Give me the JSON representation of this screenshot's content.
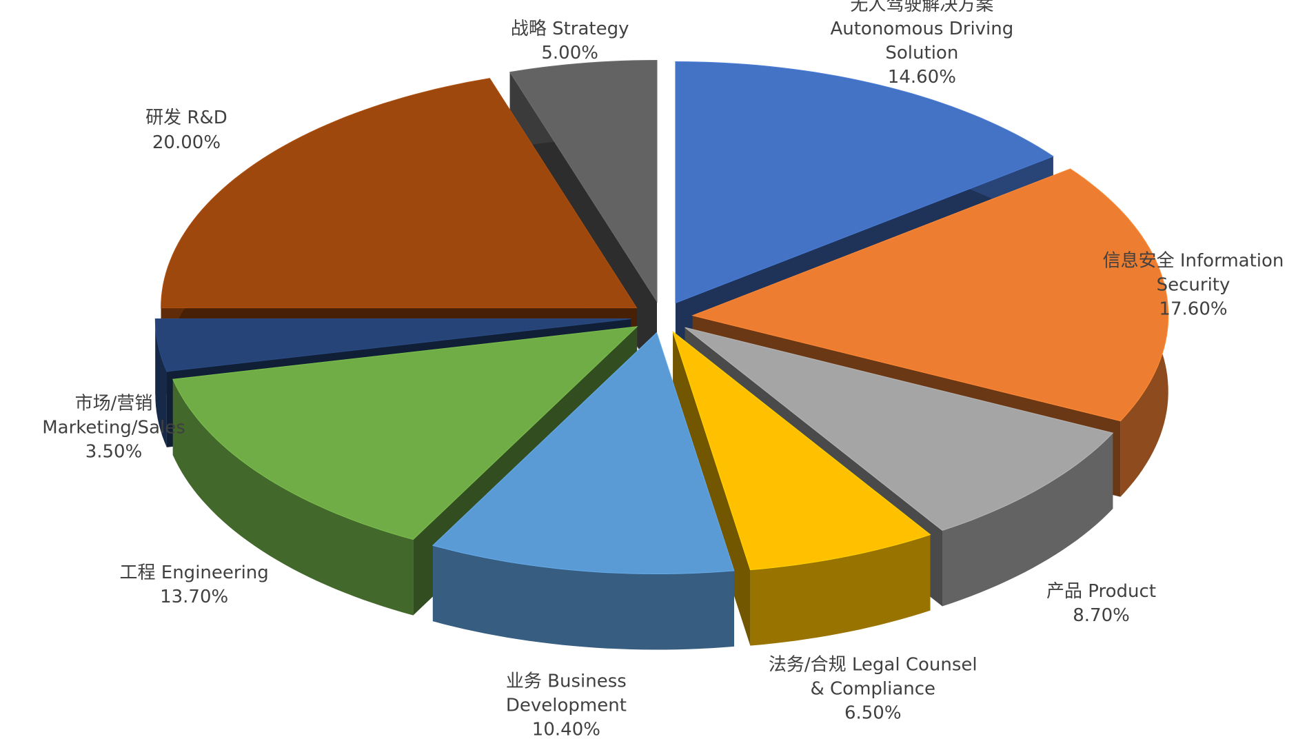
{
  "chart_data": {
    "type": "pie",
    "style": "exploded-3d",
    "categories": [
      "无人驾驶解决方案 Autonomous Driving Solution",
      "信息安全 Information Security",
      "产品 Product",
      "法务/合规 Legal Counsel & Compliance",
      "业务 Business Development",
      "工程 Engineering",
      "市场/营销 Marketing/Sales",
      "研发 R&D",
      "战略 Strategy"
    ],
    "values": [
      14.6,
      17.6,
      8.7,
      6.5,
      10.4,
      13.7,
      3.5,
      20,
      5
    ],
    "value_labels": [
      "14.60%",
      "17.60%",
      "8.70%",
      "6.50%",
      "10.40%",
      "13.70%",
      "3.50%",
      "20.00%",
      "5.00%"
    ],
    "colors": [
      "#4472c4",
      "#ed7d31",
      "#a5a5a5",
      "#ffc000",
      "#5b9bd5",
      "#70ad47",
      "#264478",
      "#9e480e",
      "#636363"
    ]
  }
}
